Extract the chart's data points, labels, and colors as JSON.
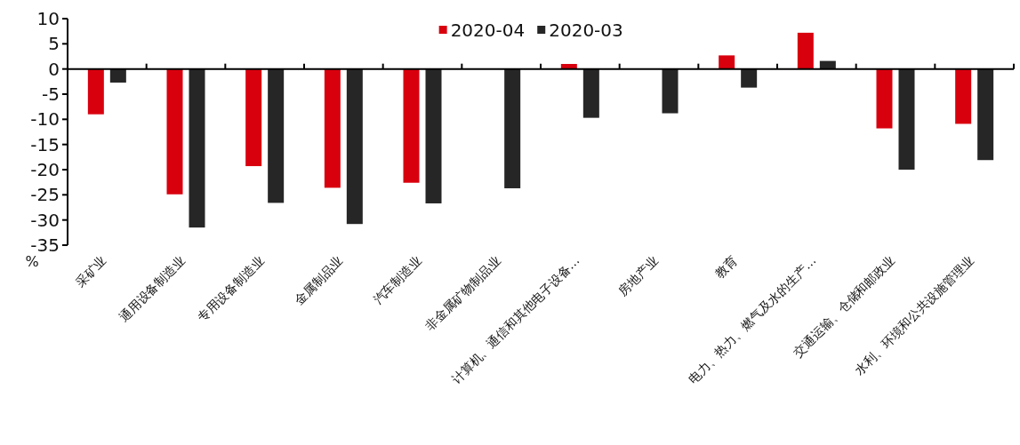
{
  "chart_data": {
    "type": "bar",
    "ylabel": "%",
    "categories": [
      "采矿业",
      "通用设备制造业",
      "专用设备制造业",
      "金属制品业",
      "汽车制造业",
      "非金属矿物制品业",
      "计算机、通信和其他电子设备…",
      "房地产业",
      "教育",
      "电力、热力、燃气及水的生产…",
      "交通运输、仓储和邮政业",
      "水利、环境和公共设施管理业"
    ],
    "series": [
      {
        "name": "2020-04",
        "color": "#d9000e",
        "values": [
          -9.0,
          -24.9,
          -19.3,
          -23.6,
          -22.6,
          null,
          1.0,
          null,
          2.7,
          7.2,
          -11.8,
          -10.9
        ]
      },
      {
        "name": "2020-03",
        "color": "#262626",
        "values": [
          -2.7,
          -31.5,
          -26.6,
          -30.8,
          -26.7,
          -23.7,
          -9.7,
          -8.8,
          -3.7,
          1.6,
          -20.0,
          -18.1
        ]
      }
    ],
    "ylim": [
      -35,
      10
    ],
    "yticks": [
      -35,
      -30,
      -25,
      -20,
      -15,
      -10,
      -5,
      0,
      5,
      10
    ],
    "legend": "top"
  }
}
